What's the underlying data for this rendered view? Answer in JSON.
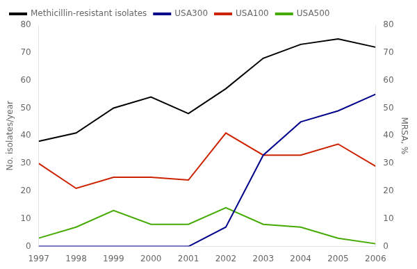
{
  "chart_data": {
    "type": "line",
    "x": [
      1997,
      1998,
      1999,
      2000,
      2001,
      2002,
      2003,
      2004,
      2005,
      2006
    ],
    "series": [
      {
        "name": "Methicillin-resistant isolates",
        "color": "#000000",
        "values": [
          38,
          41,
          50,
          54,
          48,
          57,
          68,
          73,
          75,
          72
        ]
      },
      {
        "name": "USA300",
        "color": "#00008B",
        "values": [
          0,
          0,
          0,
          0,
          0,
          7,
          33,
          45,
          49,
          55
        ]
      },
      {
        "name": "USA100",
        "color": "#cc2200",
        "values": [
          30,
          21,
          25,
          25,
          24,
          41,
          33,
          33,
          37,
          29
        ]
      },
      {
        "name": "USA500",
        "color": "#44aa00",
        "values": [
          3,
          7,
          13,
          8,
          8,
          14,
          8,
          7,
          3,
          1
        ]
      }
    ],
    "xlim": [
      1997,
      2006
    ],
    "xticks": [
      1997,
      1998,
      1999,
      2000,
      2001,
      2002,
      2003,
      2004,
      2005,
      2006
    ],
    "ylabel": "No. isolates/year",
    "ylim": [
      0,
      80
    ],
    "yticks": [
      0,
      10,
      20,
      30,
      40,
      50,
      60,
      70,
      80
    ],
    "y2label": "MRSA, %",
    "y2lim": [
      0,
      80
    ],
    "y2ticks": [
      0,
      10,
      20,
      30,
      40,
      50,
      60,
      70,
      80
    ],
    "grid": false,
    "legend": "upper left"
  }
}
